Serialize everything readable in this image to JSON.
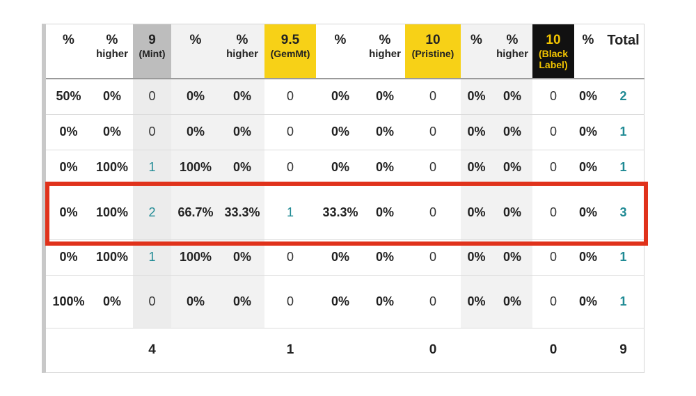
{
  "headers": [
    {
      "top": "%",
      "sub": "",
      "cls": ""
    },
    {
      "top": "%",
      "sub": "higher",
      "cls": ""
    },
    {
      "top": "9",
      "sub": "(Mint)",
      "cls": "grade mint"
    },
    {
      "top": "%",
      "sub": "",
      "cls": "shade"
    },
    {
      "top": "%",
      "sub": "higher",
      "cls": "shade"
    },
    {
      "top": "9.5",
      "sub": "(GemMt)",
      "cls": "grade gem"
    },
    {
      "top": "%",
      "sub": "",
      "cls": ""
    },
    {
      "top": "%",
      "sub": "higher",
      "cls": ""
    },
    {
      "top": "10",
      "sub": "(Pristine)",
      "cls": "grade pristine"
    },
    {
      "top": "%",
      "sub": "",
      "cls": "shade"
    },
    {
      "top": "%",
      "sub": "higher",
      "cls": "shade"
    },
    {
      "top": "10",
      "sub": "(Black Label)",
      "cls": "grade black"
    },
    {
      "top": "%",
      "sub": "",
      "cls": ""
    },
    {
      "top": "Total",
      "sub": "",
      "cls": "total"
    }
  ],
  "rows": [
    [
      "50%",
      "0%",
      "0",
      "0%",
      "0%",
      "0",
      "0%",
      "0%",
      "0",
      "0%",
      "0%",
      "0",
      "0%",
      "2"
    ],
    [
      "0%",
      "0%",
      "0",
      "0%",
      "0%",
      "0",
      "0%",
      "0%",
      "0",
      "0%",
      "0%",
      "0",
      "0%",
      "1"
    ],
    [
      "0%",
      "100%",
      "1",
      "100%",
      "0%",
      "0",
      "0%",
      "0%",
      "0",
      "0%",
      "0%",
      "0",
      "0%",
      "1"
    ],
    [
      "0%",
      "100%",
      "2",
      "66.7%",
      "33.3%",
      "1",
      "33.3%",
      "0%",
      "0",
      "0%",
      "0%",
      "0",
      "0%",
      "3"
    ],
    [
      "0%",
      "100%",
      "1",
      "100%",
      "0%",
      "0",
      "0%",
      "0%",
      "0",
      "0%",
      "0%",
      "0",
      "0%",
      "1"
    ],
    [
      "100%",
      "0%",
      "0",
      "0%",
      "0%",
      "0",
      "0%",
      "0%",
      "0",
      "0%",
      "0%",
      "0",
      "0%",
      "1"
    ]
  ],
  "totals": [
    "",
    "",
    "4",
    "",
    "",
    "1",
    "",
    "",
    "0",
    "",
    "",
    "0",
    "",
    "9"
  ],
  "highlighted_row": 3,
  "colors": {
    "highlight": "#e0321b",
    "link": "#1f8a94",
    "gold": "#f7d117",
    "black_label": "#111111"
  }
}
